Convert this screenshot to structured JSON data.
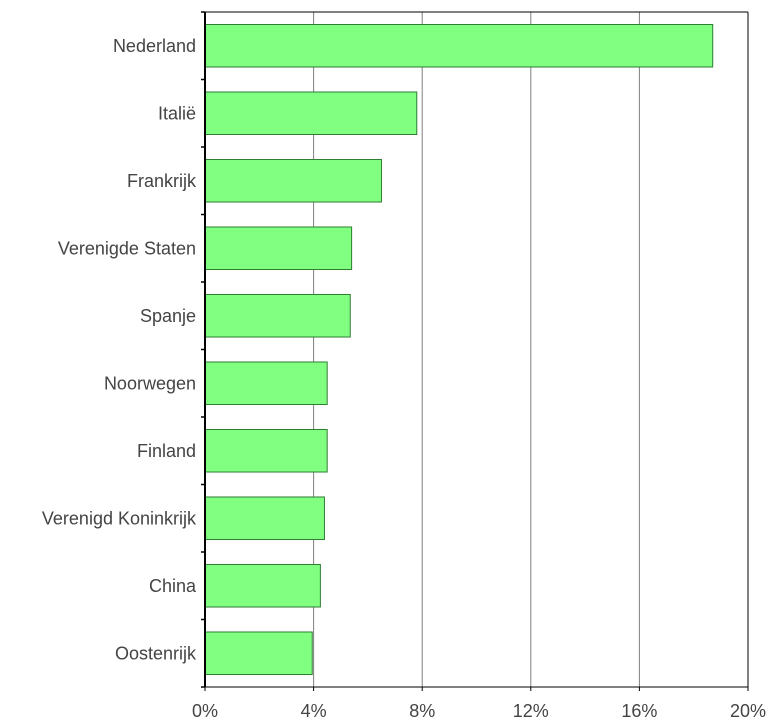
{
  "chart_data": {
    "type": "bar",
    "orientation": "horizontal",
    "categories": [
      "Nederland",
      "Italië",
      "Frankrijk",
      "Verenigde Staten",
      "Spanje",
      "Noorwegen",
      "Finland",
      "Verenigd Koninkrijk",
      "China",
      "Oostenrijk"
    ],
    "values": [
      18.7,
      7.8,
      6.5,
      5.4,
      5.35,
      4.5,
      4.5,
      4.4,
      4.25,
      3.95
    ],
    "xlim": [
      0,
      20
    ],
    "x_ticks": [
      0,
      4,
      8,
      12,
      16,
      20
    ],
    "x_tick_labels": [
      "0%",
      "4%",
      "8%",
      "12%",
      "16%",
      "20%"
    ],
    "grid": "vertical",
    "title": "",
    "xlabel": "",
    "ylabel": "",
    "colors": {
      "bar_fill": "#80ff80",
      "bar_stroke": "#2e7d32",
      "grid": "#808080",
      "axis": "#000000",
      "text": "#444444"
    }
  }
}
